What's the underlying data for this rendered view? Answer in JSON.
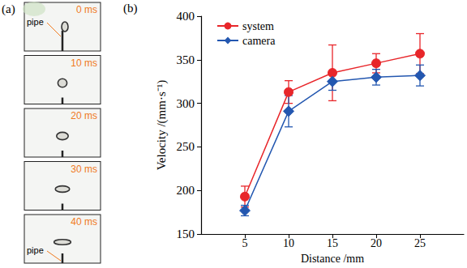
{
  "figure": {
    "panel_labels": [
      "(a)",
      "(b)"
    ],
    "frames": [
      {
        "time": "0 ms",
        "annotation": "pipe"
      },
      {
        "time": "10 ms"
      },
      {
        "time": "20 ms"
      },
      {
        "time": "30 ms"
      },
      {
        "time": "40 ms",
        "annotation": "pipe"
      }
    ]
  },
  "chart_data": {
    "type": "line",
    "x_label": "Distance /mm",
    "y_label": "Velocity /(mm·s⁻¹)",
    "x": [
      5,
      10,
      15,
      20,
      25
    ],
    "series": [
      {
        "name": "system",
        "color": "#e8262a",
        "marker": "circle",
        "values": [
          193,
          313,
          335,
          346,
          357
        ],
        "errors": [
          12,
          13,
          32,
          11,
          23
        ]
      },
      {
        "name": "camera",
        "color": "#2357b0",
        "marker": "diamond",
        "values": [
          177,
          291,
          325,
          330,
          332
        ],
        "errors": [
          6,
          18,
          10,
          9,
          12
        ]
      }
    ],
    "xlim": [
      0,
      30
    ],
    "xticks": [
      5,
      10,
      15,
      20,
      25
    ],
    "ylim": [
      150,
      400
    ],
    "yticks": [
      150,
      200,
      250,
      300,
      350,
      400
    ],
    "grid": false,
    "legend": "upper left"
  }
}
